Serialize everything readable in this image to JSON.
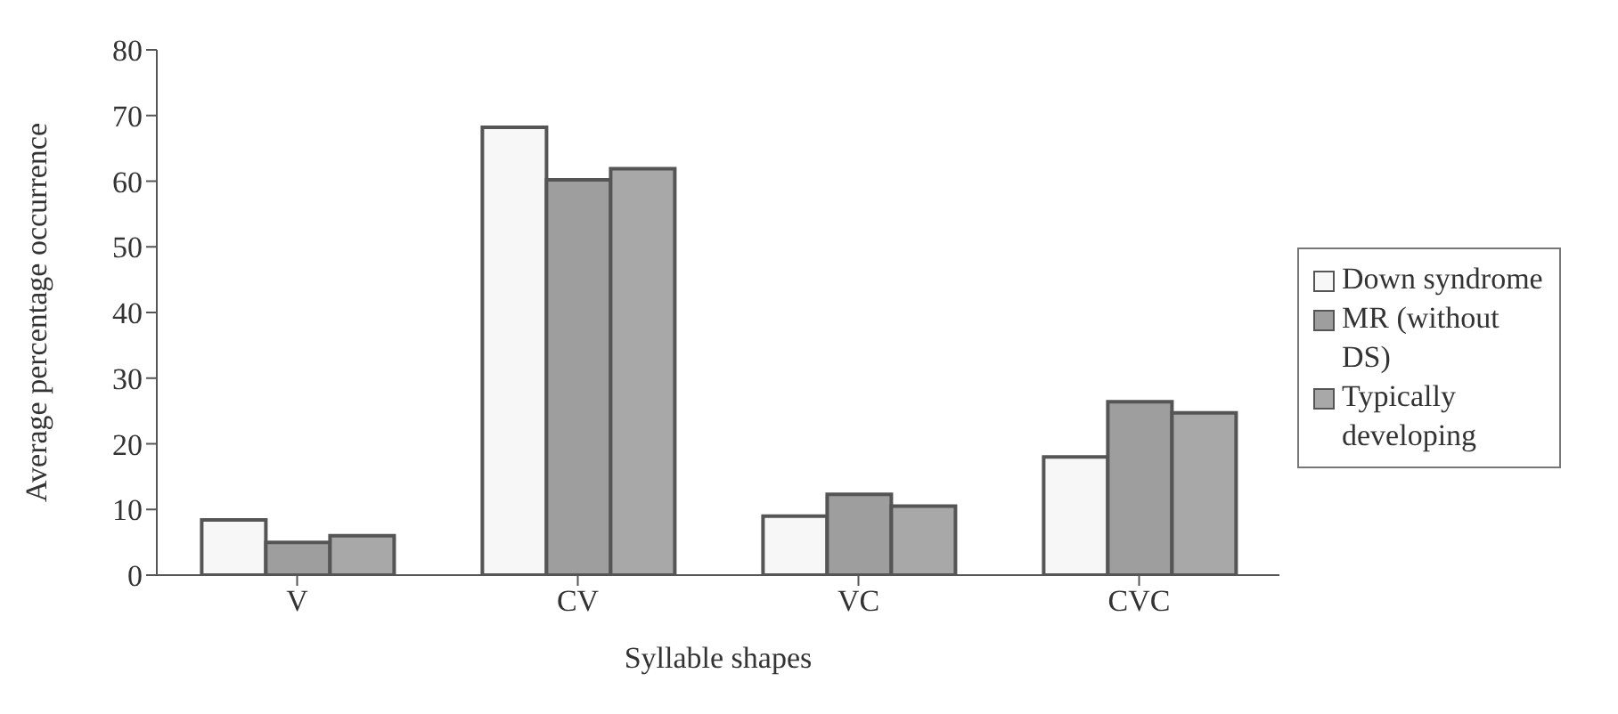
{
  "chart_data": {
    "type": "bar",
    "xlabel": "Syllable shapes",
    "ylabel": "Average percentage occurrence",
    "categories": [
      "V",
      "CV",
      "VC",
      "CVC"
    ],
    "series": [
      {
        "name": "Down syndrome",
        "color": "#f7f7f7",
        "values": [
          8.4,
          68.2,
          9,
          18
        ]
      },
      {
        "name": "MR (without DS)",
        "color": "#9e9e9e",
        "values": [
          5,
          60.2,
          12.3,
          26.4
        ]
      },
      {
        "name": "Typically developing",
        "color": "#a8a8a8",
        "values": [
          6,
          61.9,
          10.5,
          24.7
        ]
      }
    ],
    "ylim": [
      0,
      80
    ],
    "yticks": [
      0,
      10,
      20,
      30,
      40,
      50,
      60,
      70,
      80
    ],
    "grid": false,
    "legend": "right"
  }
}
